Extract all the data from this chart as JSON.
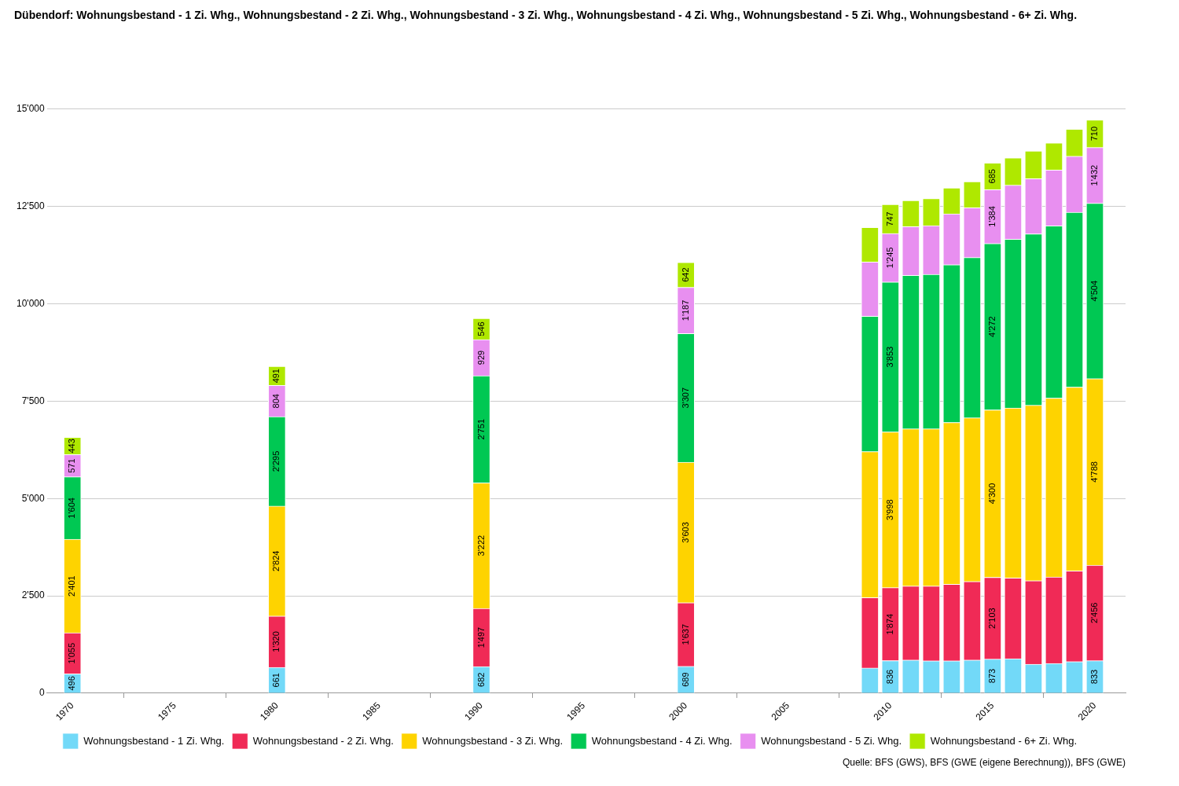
{
  "chart_data": {
    "type": "bar",
    "title": "Dübendorf: Wohnungsbestand - 1 Zi. Whg., Wohnungsbestand - 2 Zi. Whg., Wohnungsbestand - 3 Zi. Whg., Wohnungsbestand - 4 Zi. Whg., Wohnungsbestand - 5 Zi. Whg., Wohnungsbestand - 6+ Zi. Whg.",
    "x": [
      1970,
      1980,
      1990,
      2000,
      2009,
      2010,
      2011,
      2012,
      2013,
      2014,
      2015,
      2016,
      2017,
      2018,
      2019,
      2020
    ],
    "stacked": true,
    "series": [
      {
        "name": "Wohnungsbestand - 1 Zi. Whg.",
        "color": "#72d9f8",
        "values": [
          496,
          661,
          682,
          689,
          646,
          836,
          852,
          831,
          831,
          852,
          873,
          887,
          743,
          763,
          811,
          833
        ],
        "value_labels": [
          "496",
          "661",
          "682",
          "689",
          null,
          "836",
          null,
          null,
          null,
          null,
          "873",
          null,
          null,
          null,
          null,
          "833"
        ]
      },
      {
        "name": "Wohnungsbestand - 2 Zi. Whg.",
        "color": "#f02a56",
        "values": [
          1055,
          1320,
          1497,
          1637,
          1809,
          1874,
          1898,
          1919,
          1969,
          2016,
          2103,
          2070,
          2145,
          2222,
          2331,
          2456
        ],
        "value_labels": [
          "1'055",
          "1'320",
          "1'497",
          "1'637",
          null,
          "1'874",
          null,
          null,
          null,
          null,
          "2'103",
          null,
          null,
          null,
          null,
          "2'456"
        ]
      },
      {
        "name": "Wohnungsbestand - 3 Zi. Whg.",
        "color": "#fed300",
        "values": [
          2401,
          2824,
          3222,
          3603,
          3749,
          3998,
          4038,
          4038,
          4153,
          4202,
          4300,
          4367,
          4505,
          4593,
          4719,
          4788
        ],
        "value_labels": [
          "2'401",
          "2'824",
          "3'222",
          "3'603",
          null,
          "3'998",
          null,
          null,
          null,
          null,
          "4'300",
          null,
          null,
          null,
          null,
          "4'788"
        ]
      },
      {
        "name": "Wohnungsbestand - 4 Zi. Whg.",
        "color": "#00c853",
        "values": [
          1604,
          2295,
          2751,
          3307,
          3479,
          3853,
          3940,
          3968,
          4050,
          4118,
          4272,
          4333,
          4402,
          4423,
          4491,
          4504
        ],
        "value_labels": [
          "1'604",
          "2'295",
          "2'751",
          "3'307",
          null,
          "3'853",
          null,
          null,
          null,
          null,
          "4'272",
          null,
          null,
          null,
          null,
          "4'504"
        ]
      },
      {
        "name": "Wohnungsbestand - 5 Zi. Whg.",
        "color": "#e88ff0",
        "values": [
          571,
          804,
          929,
          1187,
          1390,
          1245,
          1253,
          1251,
          1308,
          1280,
          1384,
          1388,
          1416,
          1436,
          1436,
          1432
        ],
        "value_labels": [
          "571",
          "804",
          "929",
          "1'187",
          null,
          "1'245",
          null,
          null,
          null,
          null,
          "1'384",
          null,
          null,
          null,
          null,
          "1'432"
        ]
      },
      {
        "name": "Wohnungsbestand - 6+ Zi. Whg.",
        "color": "#afe800",
        "values": [
          443,
          491,
          546,
          642,
          887,
          747,
          672,
          696,
          666,
          668,
          685,
          702,
          715,
          696,
          695,
          710
        ],
        "value_labels": [
          "443",
          "491",
          "546",
          "642",
          null,
          "747",
          null,
          null,
          null,
          null,
          "685",
          null,
          null,
          null,
          null,
          "710"
        ]
      }
    ],
    "xlim": [
      1968.75,
      2021.5
    ],
    "xticks": [
      1970,
      1975,
      1980,
      1985,
      1990,
      1995,
      2000,
      2005,
      2010,
      2015,
      2020
    ],
    "ylim": [
      0,
      15000
    ],
    "yticks": [
      0,
      {
        "value": 2500,
        "label": "2'500"
      },
      {
        "value": 5000,
        "label": "5'000"
      },
      {
        "value": 7500,
        "label": "7'500"
      },
      {
        "value": 10000,
        "label": "10'000"
      },
      {
        "value": 12500,
        "label": "12'500"
      },
      {
        "value": 15000,
        "label": "15'000"
      }
    ],
    "grid": "y",
    "legend": "bottom",
    "annotations": [
      "Quelle: BFS (GWS), BFS (GWE (eigene Berechnung)), BFS (GWE)"
    ]
  }
}
